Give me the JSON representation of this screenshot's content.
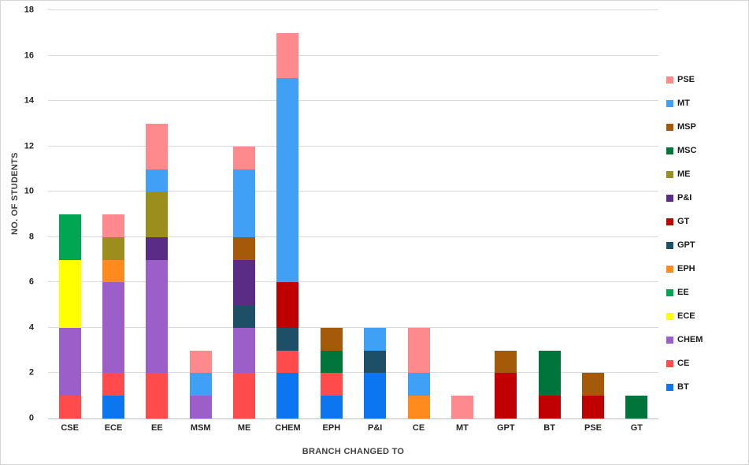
{
  "chart_data": {
    "type": "bar",
    "stacked": true,
    "xlabel": "BRANCH CHANGED TO",
    "ylabel": "NO. OF STUDENTS",
    "ylim": [
      0,
      18
    ],
    "ytick_step": 2,
    "grid": true,
    "legend_position": "right",
    "categories": [
      "CSE",
      "ECE",
      "EE",
      "MSM",
      "ME",
      "CHEM",
      "EPH",
      "P&I",
      "CE",
      "MT",
      "GPT",
      "BT",
      "PSE",
      "GT"
    ],
    "series": [
      {
        "name": "BT",
        "color": "#0B76F0",
        "values": [
          0,
          1,
          0,
          0,
          0,
          2,
          1,
          2,
          0,
          0,
          0,
          0,
          0,
          0
        ]
      },
      {
        "name": "CE",
        "color": "#FF4B4B",
        "values": [
          1,
          1,
          2,
          0,
          2,
          1,
          1,
          0,
          0,
          0,
          0,
          0,
          0,
          0
        ]
      },
      {
        "name": "CHEM",
        "color": "#9C5FC9",
        "values": [
          3,
          4,
          5,
          1,
          2,
          0,
          0,
          0,
          0,
          0,
          0,
          0,
          0,
          0
        ]
      },
      {
        "name": "ECE",
        "color": "#FFFF00",
        "values": [
          3,
          0,
          0,
          0,
          0,
          0,
          0,
          0,
          0,
          0,
          0,
          0,
          0,
          0
        ]
      },
      {
        "name": "EE",
        "color": "#00A651",
        "values": [
          2,
          0,
          0,
          0,
          0,
          0,
          0,
          0,
          0,
          0,
          0,
          0,
          0,
          0
        ]
      },
      {
        "name": "EPH",
        "color": "#FF8A1E",
        "values": [
          0,
          1,
          0,
          0,
          0,
          0,
          0,
          0,
          1,
          0,
          0,
          0,
          0,
          0
        ]
      },
      {
        "name": "GPT",
        "color": "#1D4F67",
        "values": [
          0,
          0,
          0,
          0,
          1,
          1,
          0,
          1,
          0,
          0,
          0,
          0,
          0,
          0
        ]
      },
      {
        "name": "GT",
        "color": "#C00000",
        "values": [
          0,
          0,
          0,
          0,
          0,
          2,
          0,
          0,
          0,
          0,
          2,
          1,
          1,
          0
        ]
      },
      {
        "name": "P&I",
        "color": "#5B2C86",
        "values": [
          0,
          0,
          1,
          0,
          2,
          0,
          0,
          0,
          0,
          0,
          0,
          0,
          0,
          0
        ]
      },
      {
        "name": "ME",
        "color": "#9C8E1C",
        "values": [
          0,
          1,
          2,
          0,
          0,
          0,
          0,
          0,
          0,
          0,
          0,
          0,
          0,
          0
        ]
      },
      {
        "name": "MSC",
        "color": "#00753B",
        "values": [
          0,
          0,
          0,
          0,
          0,
          0,
          1,
          0,
          0,
          0,
          0,
          2,
          0,
          1
        ]
      },
      {
        "name": "MSP",
        "color": "#A55A0A",
        "values": [
          0,
          0,
          0,
          0,
          1,
          0,
          1,
          0,
          0,
          0,
          1,
          0,
          1,
          0
        ]
      },
      {
        "name": "MT",
        "color": "#3FA0F5",
        "values": [
          0,
          0,
          1,
          1,
          3,
          9,
          0,
          1,
          1,
          0,
          0,
          0,
          0,
          0
        ]
      },
      {
        "name": "PSE",
        "color": "#FF8A8D",
        "values": [
          0,
          1,
          2,
          1,
          1,
          2,
          0,
          0,
          2,
          1,
          0,
          0,
          0,
          0
        ]
      }
    ]
  }
}
